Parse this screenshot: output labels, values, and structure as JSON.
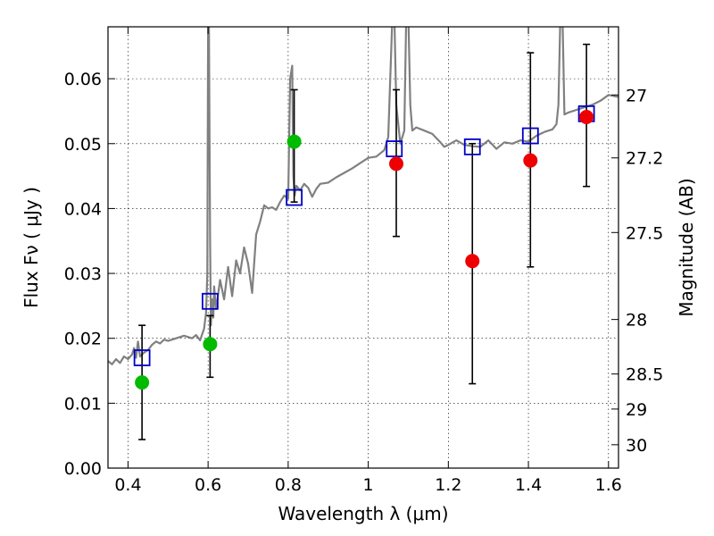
{
  "chart_data": {
    "type": "scatter",
    "xlabel": "Wavelength  λ (μm)",
    "ylabel": "Flux  Fν  ( μJy )",
    "y2label": "Magnitude (AB)",
    "xlim": [
      0.35,
      1.625
    ],
    "ylim": [
      0.0,
      0.068
    ],
    "x_ticks": [
      0.4,
      0.6,
      0.8,
      1.0,
      1.2,
      1.4,
      1.6
    ],
    "x_tick_labels": [
      "0.4",
      "0.6",
      "0.8",
      "1",
      "1.2",
      "1.4",
      "1.6"
    ],
    "y_ticks": [
      0.0,
      0.01,
      0.02,
      0.03,
      0.04,
      0.05,
      0.06
    ],
    "y_tick_labels": [
      "0.00",
      "0.01",
      "0.02",
      "0.03",
      "0.04",
      "0.05",
      "0.06"
    ],
    "y2_ticks": [
      {
        "label": "27",
        "flux": 0.0575
      },
      {
        "label": "27.2",
        "flux": 0.0478
      },
      {
        "label": "27.5",
        "flux": 0.0363
      },
      {
        "label": "28",
        "flux": 0.0229
      },
      {
        "label": "28.5",
        "flux": 0.0145
      },
      {
        "label": "29",
        "flux": 0.0091
      },
      {
        "label": "30",
        "flux": 0.0036
      }
    ],
    "grid": true,
    "colors": {
      "model": "#808080",
      "model_points": "#0000cc",
      "detection_green": "#00bb00",
      "detection_red": "#ee0000",
      "errorbar": "#000000"
    },
    "model_spectrum": {
      "x": [
        0.35,
        0.36,
        0.37,
        0.38,
        0.39,
        0.4,
        0.41,
        0.415,
        0.42,
        0.425,
        0.43,
        0.44,
        0.45,
        0.46,
        0.47,
        0.48,
        0.49,
        0.5,
        0.52,
        0.54,
        0.56,
        0.57,
        0.58,
        0.59,
        0.595,
        0.598,
        0.6,
        0.602,
        0.605,
        0.607,
        0.61,
        0.613,
        0.615,
        0.62,
        0.63,
        0.64,
        0.65,
        0.66,
        0.67,
        0.68,
        0.69,
        0.7,
        0.71,
        0.72,
        0.73,
        0.74,
        0.75,
        0.76,
        0.77,
        0.78,
        0.79,
        0.8,
        0.805,
        0.81,
        0.813,
        0.816,
        0.82,
        0.83,
        0.84,
        0.85,
        0.86,
        0.87,
        0.88,
        0.9,
        0.92,
        0.94,
        0.96,
        0.98,
        1.0,
        1.02,
        1.04,
        1.05,
        1.06,
        1.065,
        1.07,
        1.08,
        1.09,
        1.095,
        1.1,
        1.105,
        1.11,
        1.12,
        1.14,
        1.16,
        1.18,
        1.19,
        1.2,
        1.22,
        1.24,
        1.26,
        1.28,
        1.3,
        1.32,
        1.34,
        1.36,
        1.38,
        1.4,
        1.42,
        1.44,
        1.46,
        1.47,
        1.475,
        1.48,
        1.485,
        1.49,
        1.5,
        1.52,
        1.54,
        1.56,
        1.58,
        1.6,
        1.625
      ],
      "y": [
        0.0165,
        0.016,
        0.0168,
        0.0162,
        0.0172,
        0.0168,
        0.0175,
        0.0185,
        0.017,
        0.0195,
        0.0172,
        0.0178,
        0.0182,
        0.019,
        0.0195,
        0.0192,
        0.0198,
        0.0196,
        0.02,
        0.0204,
        0.02,
        0.0205,
        0.0197,
        0.0215,
        0.024,
        0.03,
        0.07,
        0.068,
        0.035,
        0.022,
        0.026,
        0.0232,
        0.028,
        0.0245,
        0.029,
        0.026,
        0.031,
        0.0265,
        0.032,
        0.03,
        0.034,
        0.0315,
        0.027,
        0.036,
        0.038,
        0.0405,
        0.04,
        0.0402,
        0.0398,
        0.041,
        0.042,
        0.0415,
        0.06,
        0.062,
        0.045,
        0.042,
        0.0435,
        0.0428,
        0.0438,
        0.0432,
        0.0418,
        0.043,
        0.0438,
        0.044,
        0.0448,
        0.0455,
        0.0462,
        0.047,
        0.0478,
        0.048,
        0.049,
        0.051,
        0.069,
        0.07,
        0.056,
        0.05,
        0.052,
        0.07,
        0.07,
        0.056,
        0.052,
        0.0525,
        0.052,
        0.0515,
        0.0502,
        0.0495,
        0.0498,
        0.0505,
        0.0498,
        0.0496,
        0.0495,
        0.0505,
        0.0492,
        0.0502,
        0.05,
        0.0505,
        0.0503,
        0.0512,
        0.0518,
        0.0522,
        0.053,
        0.056,
        0.07,
        0.07,
        0.0545,
        0.0548,
        0.0552,
        0.0556,
        0.056,
        0.0566,
        0.0575,
        0.0572
      ]
    },
    "model_points": {
      "x": [
        0.435,
        0.605,
        0.815,
        1.065,
        1.26,
        1.405,
        1.545
      ],
      "y": [
        0.017,
        0.0257,
        0.0417,
        0.0492,
        0.0495,
        0.0512,
        0.0546
      ]
    },
    "observed": [
      {
        "x": 0.435,
        "y": 0.0132,
        "ylo": 0.0044,
        "yhi": 0.022,
        "color": "green"
      },
      {
        "x": 0.605,
        "y": 0.0191,
        "ylo": 0.014,
        "yhi": 0.0235,
        "color": "green"
      },
      {
        "x": 0.815,
        "y": 0.0503,
        "ylo": 0.041,
        "yhi": 0.0583,
        "color": "green"
      },
      {
        "x": 1.07,
        "y": 0.0469,
        "ylo": 0.0357,
        "yhi": 0.0583,
        "color": "red"
      },
      {
        "x": 1.26,
        "y": 0.0319,
        "ylo": 0.013,
        "yhi": 0.05,
        "color": "red"
      },
      {
        "x": 1.405,
        "y": 0.0474,
        "ylo": 0.031,
        "yhi": 0.064,
        "color": "red"
      },
      {
        "x": 1.545,
        "y": 0.0541,
        "ylo": 0.0434,
        "yhi": 0.0653,
        "color": "red"
      }
    ]
  }
}
